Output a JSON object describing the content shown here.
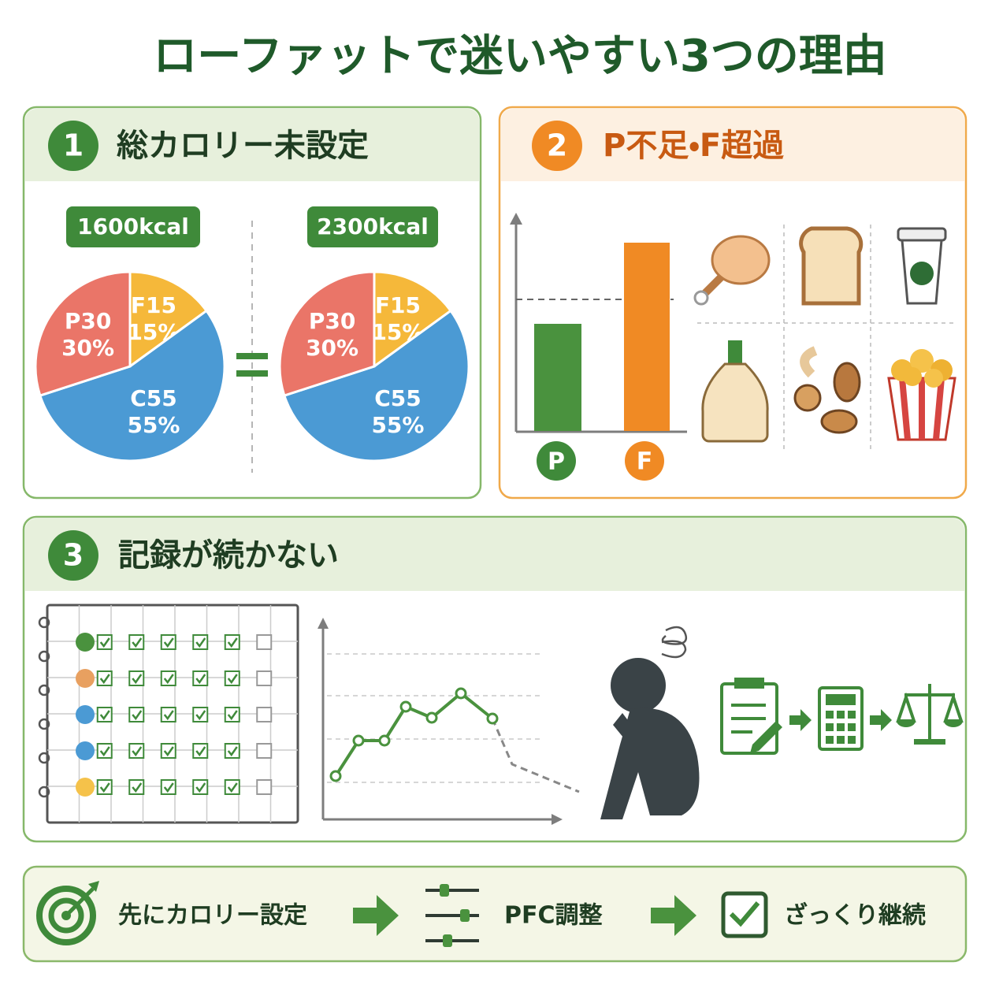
{
  "title": "ローファットで迷いやすい3つの理由",
  "sections": [
    {
      "number": "1",
      "heading": "総カロリー未設定",
      "pies": [
        {
          "label": "1600kcal",
          "slices": [
            {
              "name": "F15",
              "value": 15,
              "value_label": "15%",
              "color": "#f5b83a"
            },
            {
              "name": "C55",
              "value": 55,
              "value_label": "55%",
              "color": "#4b9ad4"
            },
            {
              "name": "P30",
              "value": 30,
              "value_label": "30%",
              "color": "#ea7568"
            }
          ]
        },
        {
          "label": "2300kcal",
          "slices": [
            {
              "name": "F15",
              "value": 15,
              "value_label": "15%",
              "color": "#f5b83a"
            },
            {
              "name": "C55",
              "value": 55,
              "value_label": "55%",
              "color": "#4b9ad4"
            },
            {
              "name": "P30",
              "value": 30,
              "value_label": "30%",
              "color": "#ea7568"
            }
          ]
        }
      ]
    },
    {
      "number": "2",
      "heading": "P不足・F超過",
      "bars": [
        "P",
        "F"
      ]
    },
    {
      "number": "3",
      "heading": "記録が続かない"
    }
  ],
  "footer": {
    "steps": [
      "先にカロリー設定",
      "PFC調整",
      "ざっくり継続"
    ]
  }
}
